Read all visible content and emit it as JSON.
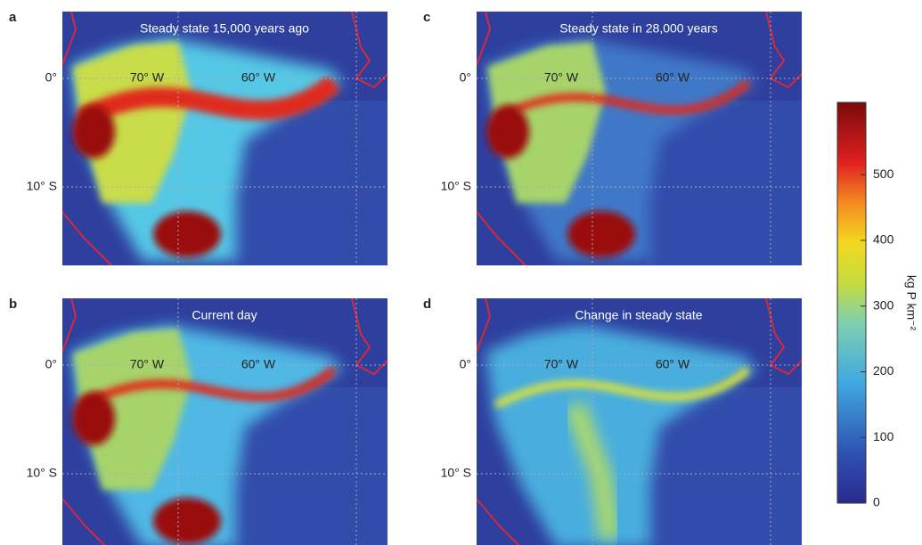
{
  "panels": [
    {
      "letter": "a",
      "title": "Steady state 15,000 years ago",
      "lat_labels": [
        "0°",
        "10° S"
      ],
      "lon_labels": [
        "70° W",
        "60° W"
      ]
    },
    {
      "letter": "c",
      "title": "Steady state in 28,000 years",
      "lat_labels": [
        "0°",
        "10° S"
      ],
      "lon_labels": [
        "70° W",
        "60° W"
      ]
    },
    {
      "letter": "b",
      "title": "Current day",
      "lat_labels": [
        "0°",
        "10° S"
      ],
      "lon_labels": [
        "70° W",
        "60° W"
      ]
    },
    {
      "letter": "d",
      "title": "Change in steady state",
      "lat_labels": [
        "0°",
        "10° S"
      ],
      "lon_labels": [
        "70° W",
        "60° W"
      ]
    }
  ],
  "colorbar": {
    "label": "kg P km⁻²",
    "lim": [
      0,
      610
    ],
    "ticks": [
      0,
      100,
      200,
      300,
      400,
      500
    ]
  }
}
